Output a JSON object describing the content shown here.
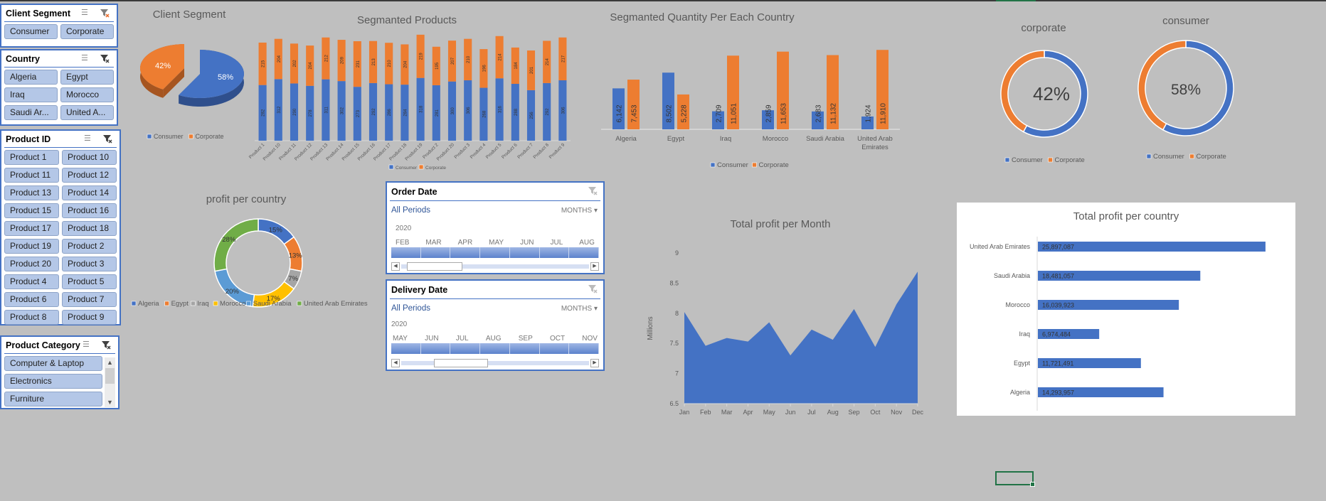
{
  "colors": {
    "consumer": "#4472c4",
    "corporate": "#ed7d31",
    "slicer_item": "#b4c7e7",
    "slicer_border": "#4472c4",
    "background": "#bfbfbf",
    "selection": "#217346"
  },
  "slicers": {
    "client_segment": {
      "title": "Client Segment",
      "items": [
        "Consumer",
        "Corporate"
      ]
    },
    "country": {
      "title": "Country",
      "items": [
        "Algeria",
        "Egypt",
        "Iraq",
        "Morocco",
        "Saudi Ar...",
        "United A..."
      ]
    },
    "product_id": {
      "title": "Product ID",
      "items": [
        "Product 1",
        "Product 10",
        "Product 11",
        "Product 12",
        "Product 13",
        "Product 14",
        "Product 15",
        "Product 16",
        "Product 17",
        "Product 18",
        "Product 19",
        "Product 2",
        "Product 20",
        "Product 3",
        "Product 4",
        "Product 5",
        "Product 6",
        "Product 7",
        "Product 8",
        "Product 9"
      ]
    },
    "product_category": {
      "title": "Product Category",
      "items": [
        "Computer & Laptop",
        "Electronics",
        "Furniture"
      ]
    },
    "icons": {
      "multi_select": "multi-select-icon",
      "clear_filter": "clear-filter-icon"
    }
  },
  "timelines": {
    "order_date": {
      "title": "Order Date",
      "selection": "All Periods",
      "level": "MONTHS",
      "year": "2020",
      "months": [
        "FEB",
        "MAR",
        "APR",
        "MAY",
        "JUN",
        "JUL",
        "AUG"
      ],
      "scroll_position": 0.1
    },
    "delivery_date": {
      "title": "Delivery Date",
      "selection": "All Periods",
      "level": "MONTHS",
      "year": "2020",
      "months": [
        "MAY",
        "JUN",
        "JUL",
        "AUG",
        "SEP",
        "OCT",
        "NOV"
      ],
      "scroll_position": 0.25
    }
  },
  "chart_data": [
    {
      "id": "client_segment_pie",
      "type": "pie",
      "title": "Client Segment",
      "categories": [
        "Consumer",
        "Corporate"
      ],
      "values": [
        58,
        42
      ],
      "labels": [
        "58%",
        "42%"
      ],
      "legend": "bottom",
      "style": "3d-exploded"
    },
    {
      "id": "segmented_products",
      "type": "bar",
      "stacked": true,
      "title": "Segmanted Products",
      "categories": [
        "Product 1",
        "Product 10",
        "Product 11",
        "Product 12",
        "Product 13",
        "Product 14",
        "Product 15",
        "Product 16",
        "Product 17",
        "Product 18",
        "Product 19",
        "Product 2",
        "Product 20",
        "Product 3",
        "Product 4",
        "Product 5",
        "Product 6",
        "Product 7",
        "Product 8",
        "Product 9"
      ],
      "series": [
        {
          "name": "Consumer",
          "values": [
            282,
            312,
            290,
            278,
            311,
            302,
            273,
            292,
            286,
            284,
            318,
            281,
            300,
            306,
            268,
            316,
            288,
            256,
            292,
            306
          ]
        },
        {
          "name": "Corporate",
          "values": [
            215,
            204,
            202,
            204,
            212,
            209,
            231,
            213,
            210,
            204,
            219,
            195,
            207,
            210,
            196,
            214,
            184,
            201,
            214,
            217
          ]
        }
      ],
      "ylim": [
        0,
        540
      ],
      "legend": "bottom"
    },
    {
      "id": "segmented_quantity",
      "type": "bar",
      "title": "Segmanted Quantity Per Each Country",
      "categories": [
        "Algeria",
        "Egypt",
        "Iraq",
        "Morocco",
        "Saudi Arabia",
        "United Arab Emirates"
      ],
      "category_lines": [
        [
          "Algeria"
        ],
        [
          "Egypt"
        ],
        [
          "Iraq"
        ],
        [
          "Morocco"
        ],
        [
          "Saudi Arabia"
        ],
        [
          "United Arab",
          "Emirates"
        ]
      ],
      "series": [
        {
          "name": "Consumer",
          "values": [
            6142,
            8502,
            2709,
            2859,
            2683,
            1924
          ],
          "labels": [
            "6,142",
            "8,502",
            "2,709",
            "2,859",
            "2,683",
            "1,924"
          ]
        },
        {
          "name": "Corporate",
          "values": [
            7453,
            5228,
            11051,
            11653,
            11132,
            11910
          ],
          "labels": [
            "7,453",
            "5,228",
            "11,051",
            "11,653",
            "11,132",
            "11,910"
          ]
        }
      ],
      "ylim": [
        0,
        13000
      ],
      "legend": "bottom"
    },
    {
      "id": "corporate_donut",
      "type": "pie",
      "donut": true,
      "title": "corporate",
      "categories": [
        "Consumer",
        "Corporate"
      ],
      "values": [
        58,
        42
      ],
      "center_label": "42%",
      "legend": "bottom"
    },
    {
      "id": "consumer_donut",
      "type": "pie",
      "donut": true,
      "title": "consumer",
      "categories": [
        "Consumer",
        "Corporate"
      ],
      "values": [
        58,
        42
      ],
      "center_label": "58%",
      "legend": "bottom"
    },
    {
      "id": "profit_per_country_donut",
      "type": "pie",
      "donut": true,
      "title": "profit per country",
      "categories": [
        "Algeria",
        "Egypt",
        "Iraq",
        "Morocco",
        "Saudi Arabia",
        "United Arab Emirates"
      ],
      "values": [
        15,
        13,
        7,
        17,
        20,
        28
      ],
      "labels": [
        "15%",
        "13%",
        "7%",
        "17%",
        "20%",
        "28%"
      ],
      "colors": [
        "#4472c4",
        "#ed7d31",
        "#a5a5a5",
        "#ffc000",
        "#5b9bd5",
        "#70ad47"
      ],
      "legend": "bottom"
    },
    {
      "id": "total_profit_per_month",
      "type": "area",
      "title": "Total profit per Month",
      "x": [
        "Jan",
        "Feb",
        "Mar",
        "Apr",
        "May",
        "Jun",
        "Jul",
        "Aug",
        "Sep",
        "Oct",
        "Nov",
        "Dec"
      ],
      "values": [
        8.02,
        7.46,
        7.59,
        7.53,
        7.85,
        7.3,
        7.73,
        7.56,
        8.07,
        7.44,
        8.15,
        8.69
      ],
      "ylabel": "Millions",
      "ylim": [
        6.5,
        9
      ],
      "yticks": [
        "6.5",
        "7",
        "7.5",
        "8",
        "8.5",
        "9"
      ],
      "legend": "none"
    },
    {
      "id": "total_profit_per_country",
      "type": "bar",
      "orientation": "horizontal",
      "title": "Total profit per country",
      "categories": [
        "United Arab Emirates",
        "Saudi Arabia",
        "Morocco",
        "Iraq",
        "Egypt",
        "Algeria"
      ],
      "values": [
        25897087,
        18481057,
        16039923,
        6974484,
        11721491,
        14293957
      ],
      "labels": [
        "25,897,087",
        "18,481,057",
        "16,039,923",
        "6,974,484",
        "11,721,491",
        "14,293,957"
      ],
      "xlim": [
        0,
        30000000
      ],
      "legend": "none"
    }
  ]
}
